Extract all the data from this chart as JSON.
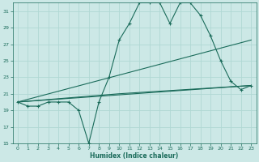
{
  "xlabel": "Humidex (Indice chaleur)",
  "bg_color": "#cce8e6",
  "line_color": "#1a6b5a",
  "grid_color": "#b0d8d4",
  "xlim": [
    -0.5,
    23.5
  ],
  "ylim": [
    15,
    32
  ],
  "xticks": [
    0,
    1,
    2,
    3,
    4,
    5,
    6,
    7,
    8,
    9,
    10,
    11,
    12,
    13,
    14,
    15,
    16,
    17,
    18,
    19,
    20,
    21,
    22,
    23
  ],
  "yticks": [
    15,
    17,
    19,
    21,
    23,
    25,
    27,
    29,
    31
  ],
  "series1_x": [
    0,
    1,
    2,
    3,
    4,
    5,
    6,
    7,
    8,
    9,
    10,
    11,
    12,
    13,
    14,
    15,
    16,
    17,
    18,
    19,
    20,
    21,
    22,
    23
  ],
  "series1_y": [
    20,
    19.5,
    19.5,
    20,
    20,
    20,
    19,
    15,
    20,
    23,
    27.5,
    29.5,
    32,
    32,
    32,
    29.5,
    32,
    32,
    30.5,
    28,
    25,
    22.5,
    21.5,
    22
  ],
  "line2_x": [
    0,
    23
  ],
  "line2_y": [
    20,
    22
  ],
  "line3_x": [
    0,
    23
  ],
  "line3_y": [
    20,
    27.5
  ],
  "line4_x": [
    0,
    10,
    23
  ],
  "line4_y": [
    20,
    21,
    22
  ]
}
